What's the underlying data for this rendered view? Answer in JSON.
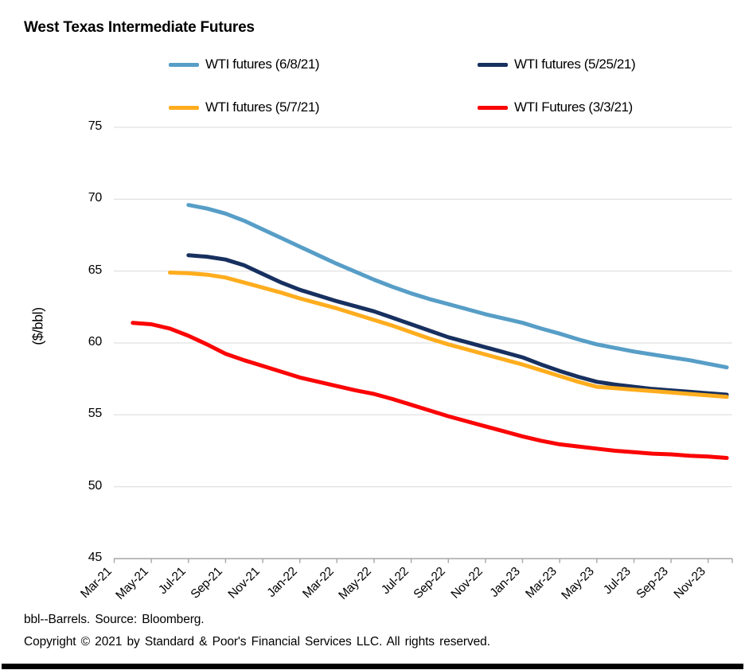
{
  "footnotes": [
    "bbl--Barrels. Source: Bloomberg.",
    "Copyright © 2021 by Standard & Poor's Financial Services LLC. All rights reserved."
  ],
  "chart_data": {
    "type": "line",
    "title": "West Texas Intermediate Futures",
    "ylabel": "($/bbl)",
    "xlabel": "",
    "ylim": [
      45,
      75
    ],
    "yticks": [
      75,
      70,
      65,
      60,
      55,
      50,
      45
    ],
    "grid": "horizontal-only",
    "gridline_color": "#D9D9D9",
    "axis_color": "#A6A6A6",
    "legend_position": "top",
    "x_unit": "month",
    "x_start": "Mar-21",
    "x_end": "Dec-23",
    "xtick_month_step": 2,
    "xtick_labels": [
      "Mar-21",
      "May-21",
      "Jul-21",
      "Sep-21",
      "Nov-21",
      "Jan-22",
      "Mar-22",
      "May-22",
      "Jul-22",
      "Sep-22",
      "Nov-22",
      "Jan-23",
      "Mar-23",
      "May-23",
      "Jul-23",
      "Sep-23",
      "Nov-23"
    ],
    "series": [
      {
        "id": "wti-futures-6-8-21",
        "name": "WTI futures (6/8/21)",
        "color": "#579EC7",
        "start_month": "Jul-21",
        "start_index": 4,
        "values": [
          69.6,
          69.35,
          69.0,
          68.5,
          67.9,
          67.3,
          66.7,
          66.1,
          65.5,
          64.95,
          64.4,
          63.9,
          63.45,
          63.05,
          62.7,
          62.35,
          62.0,
          61.7,
          61.4,
          61.0,
          60.65,
          60.25,
          59.9,
          59.65,
          59.4,
          59.2,
          59.0,
          58.8,
          58.55,
          58.3
        ]
      },
      {
        "id": "wti-futures-5-25-21",
        "name": "WTI futures (5/25/21)",
        "color": "#17305F",
        "start_month": "Jul-21",
        "start_index": 4,
        "values": [
          66.1,
          66.0,
          65.8,
          65.4,
          64.8,
          64.2,
          63.7,
          63.3,
          62.9,
          62.55,
          62.2,
          61.75,
          61.3,
          60.85,
          60.4,
          60.05,
          59.7,
          59.35,
          59.0,
          58.5,
          58.05,
          57.65,
          57.3,
          57.1,
          56.95,
          56.8,
          56.7,
          56.6,
          56.5,
          56.4
        ]
      },
      {
        "id": "wti-futures-5-7-21",
        "name": "WTI futures (5/7/21)",
        "color": "#FFAD1E",
        "start_month": "Jun-21",
        "start_index": 3,
        "values": [
          64.9,
          64.85,
          64.75,
          64.55,
          64.2,
          63.85,
          63.5,
          63.1,
          62.75,
          62.4,
          62.0,
          61.6,
          61.2,
          60.75,
          60.3,
          59.9,
          59.55,
          59.2,
          58.85,
          58.5,
          58.1,
          57.7,
          57.3,
          56.95,
          56.85,
          56.75,
          56.65,
          56.55,
          56.45,
          56.35,
          56.25
        ]
      },
      {
        "id": "wti-futures-3-3-21",
        "name": "WTI Futures (3/3/21)",
        "color": "#FB0505",
        "start_month": "Apr-21",
        "start_index": 1,
        "values": [
          61.4,
          61.3,
          61.0,
          60.5,
          59.9,
          59.25,
          58.8,
          58.4,
          58.0,
          57.6,
          57.3,
          57.0,
          56.7,
          56.45,
          56.1,
          55.7,
          55.3,
          54.9,
          54.55,
          54.2,
          53.85,
          53.5,
          53.2,
          52.95,
          52.8,
          52.65,
          52.5,
          52.4,
          52.3,
          52.25,
          52.15,
          52.1,
          52.0
        ]
      }
    ]
  }
}
